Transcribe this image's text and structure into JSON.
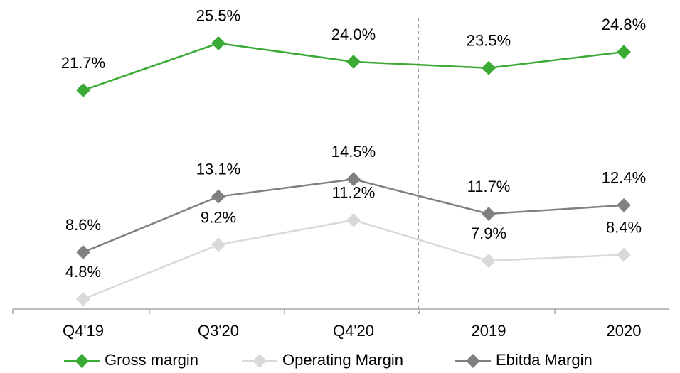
{
  "chart_data": {
    "type": "line",
    "categories": [
      "Q4'19",
      "Q3'20",
      "Q4'20",
      "2019",
      "2020"
    ],
    "ylim": [
      4,
      29
    ],
    "series": [
      {
        "name": "Gross margin",
        "color": "#3aaa35",
        "values": [
          21.7,
          25.5,
          24.0,
          23.5,
          24.8
        ],
        "value_labels": [
          "21.7%",
          "25.5%",
          "24.0%",
          "23.5%",
          "24.8%"
        ]
      },
      {
        "name": "Operating Margin",
        "color": "#d9d9d9",
        "values": [
          4.8,
          9.2,
          11.2,
          7.9,
          8.4
        ],
        "value_labels": [
          "4.8%",
          "9.2%",
          "11.2%",
          "7.9%",
          "8.4%"
        ]
      },
      {
        "name": "Ebitda Margin",
        "color": "#808080",
        "values": [
          8.6,
          13.1,
          14.5,
          11.7,
          12.4
        ],
        "value_labels": [
          "8.6%",
          "13.1%",
          "14.5%",
          "11.7%",
          "12.4%"
        ]
      }
    ]
  }
}
